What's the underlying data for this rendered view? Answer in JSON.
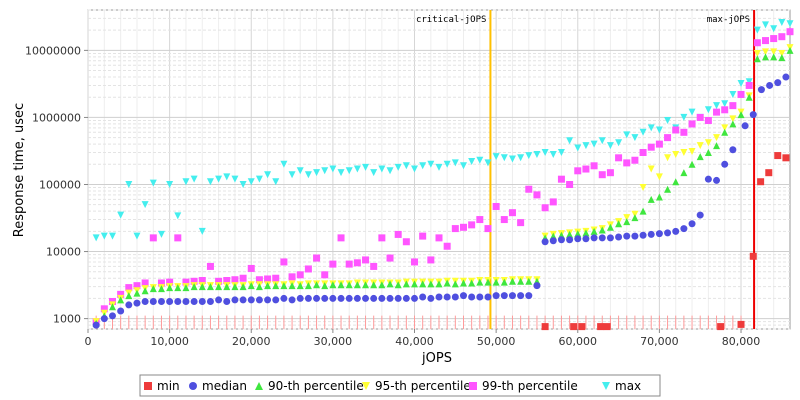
{
  "chart_data": {
    "type": "scatter",
    "xlabel": "jOPS",
    "ylabel": "Response time, usec",
    "xlim": [
      0,
      86000
    ],
    "ylim": [
      700,
      40000000
    ],
    "log_y": true,
    "grid": true,
    "legend_position": "bottom",
    "x_ticks": [
      0,
      10000,
      20000,
      30000,
      40000,
      50000,
      60000,
      70000,
      80000
    ],
    "x_tick_labels": [
      "0",
      "10,000",
      "20,000",
      "30,000",
      "40,000",
      "50,000",
      "60,000",
      "70,000",
      "80,000"
    ],
    "y_ticks": [
      1000,
      10000,
      100000,
      1000000,
      10000000
    ],
    "y_tick_labels": [
      "1000",
      "10000",
      "100000",
      "1000000",
      "10000000"
    ],
    "vlines": [
      {
        "label": "critical-jOPS",
        "x": 49300,
        "color": "#ffc000"
      },
      {
        "label": "max-jOPS",
        "x": 81600,
        "color": "#ee0000"
      }
    ],
    "series": [
      {
        "name": "min",
        "color": "#ee3b3b",
        "marker": "square",
        "x": [
          56000,
          59500,
          60500,
          62800,
          63600,
          77500,
          80000,
          81500,
          82400,
          83400,
          84500,
          85500
        ],
        "y": [
          760,
          760,
          760,
          760,
          760,
          760,
          820,
          8500,
          110000,
          150000,
          270000,
          250000
        ]
      },
      {
        "name": "median",
        "color": "#4f4fdf",
        "marker": "circle",
        "x": [
          1000,
          2000,
          3000,
          4000,
          5000,
          6000,
          7000,
          8000,
          9000,
          10000,
          11000,
          12000,
          13000,
          14000,
          15000,
          16000,
          17000,
          18000,
          19000,
          20000,
          21000,
          22000,
          23000,
          24000,
          25000,
          26000,
          27000,
          28000,
          29000,
          30000,
          31000,
          32000,
          33000,
          34000,
          35000,
          36000,
          37000,
          38000,
          39000,
          40000,
          41000,
          42000,
          43000,
          44000,
          45000,
          46000,
          47000,
          48000,
          49000,
          50000,
          51000,
          52000,
          53000,
          54000,
          55000,
          56000,
          57000,
          58000,
          59000,
          60000,
          61000,
          62000,
          63000,
          64000,
          65000,
          66000,
          67000,
          68000,
          69000,
          70000,
          71000,
          72000,
          73000,
          74000,
          75000,
          76000,
          77000,
          78000,
          79000,
          80500,
          81500,
          82500,
          83500,
          84500,
          85500
        ],
        "y": [
          800,
          1000,
          1100,
          1300,
          1600,
          1700,
          1800,
          1800,
          1800,
          1800,
          1800,
          1800,
          1800,
          1800,
          1800,
          1900,
          1800,
          1900,
          1900,
          1900,
          1900,
          1900,
          1900,
          2000,
          1900,
          2000,
          2000,
          2000,
          2000,
          2000,
          2000,
          2000,
          2000,
          2000,
          2000,
          2000,
          2000,
          2000,
          2000,
          2000,
          2100,
          2000,
          2100,
          2100,
          2100,
          2200,
          2100,
          2100,
          2100,
          2200,
          2200,
          2200,
          2200,
          2200,
          3100,
          14000,
          14500,
          15000,
          15000,
          15500,
          15500,
          16000,
          16000,
          16000,
          16500,
          17000,
          17000,
          17500,
          18000,
          18500,
          19000,
          20000,
          22000,
          26000,
          35000,
          120000,
          115000,
          200000,
          330000,
          750000,
          1100000,
          2600000,
          3000000,
          3300000,
          4000000
        ]
      },
      {
        "name": "90-th percentile",
        "color": "#3fe63f",
        "marker": "triangle-up",
        "x": [
          1000,
          2000,
          3000,
          4000,
          5000,
          6000,
          7000,
          8000,
          9000,
          10000,
          11000,
          12000,
          13000,
          14000,
          15000,
          16000,
          17000,
          18000,
          19000,
          20000,
          21000,
          22000,
          23000,
          24000,
          25000,
          26000,
          27000,
          28000,
          29000,
          30000,
          31000,
          32000,
          33000,
          34000,
          35000,
          36000,
          37000,
          38000,
          39000,
          40000,
          41000,
          42000,
          43000,
          44000,
          45000,
          46000,
          47000,
          48000,
          49000,
          50000,
          51000,
          52000,
          53000,
          54000,
          55000,
          56000,
          57000,
          58000,
          59000,
          60000,
          61000,
          62000,
          63000,
          64000,
          65000,
          66000,
          67000,
          68000,
          69000,
          70000,
          71000,
          72000,
          73000,
          74000,
          75000,
          76000,
          77000,
          78000,
          79000,
          80000,
          81000,
          82000,
          83000,
          84000,
          85000,
          86000
        ],
        "y": [
          850,
          1100,
          1500,
          1900,
          2200,
          2400,
          2600,
          2800,
          2800,
          2900,
          2900,
          2900,
          3000,
          3000,
          3000,
          3000,
          3000,
          3000,
          3000,
          3100,
          3000,
          3100,
          3100,
          3100,
          3100,
          3100,
          3100,
          3200,
          3100,
          3200,
          3200,
          3200,
          3200,
          3200,
          3200,
          3200,
          3300,
          3200,
          3300,
          3300,
          3300,
          3300,
          3300,
          3400,
          3300,
          3400,
          3400,
          3500,
          3500,
          3500,
          3500,
          3600,
          3600,
          3600,
          3600,
          16000,
          17000,
          17500,
          18000,
          18500,
          19000,
          20000,
          21000,
          23000,
          26000,
          28000,
          32000,
          40000,
          60000,
          65000,
          85000,
          110000,
          150000,
          200000,
          260000,
          300000,
          380000,
          600000,
          800000,
          1100000,
          2000000,
          7500000,
          8000000,
          8000000,
          7800000,
          10000000
        ]
      },
      {
        "name": "95-th percentile",
        "color": "#ffff33",
        "marker": "triangle-down",
        "x": [
          1000,
          2000,
          3000,
          4000,
          5000,
          6000,
          7000,
          8000,
          9000,
          10000,
          11000,
          12000,
          13000,
          14000,
          15000,
          16000,
          17000,
          18000,
          19000,
          20000,
          21000,
          22000,
          23000,
          24000,
          25000,
          26000,
          27000,
          28000,
          29000,
          30000,
          31000,
          32000,
          33000,
          34000,
          35000,
          36000,
          37000,
          38000,
          39000,
          40000,
          41000,
          42000,
          43000,
          44000,
          45000,
          46000,
          47000,
          48000,
          49000,
          50000,
          51000,
          52000,
          53000,
          54000,
          55000,
          56000,
          57000,
          58000,
          59000,
          60000,
          61000,
          62000,
          63000,
          64000,
          65000,
          66000,
          67000,
          68000,
          69000,
          70000,
          71000,
          72000,
          73000,
          74000,
          75000,
          76000,
          77000,
          78000,
          79000,
          80000,
          81000,
          82000,
          83000,
          84000,
          85000,
          86000
        ],
        "y": [
          900,
          1200,
          1600,
          2000,
          2400,
          2600,
          2800,
          2900,
          2900,
          3000,
          3000,
          3000,
          3100,
          3100,
          3100,
          3100,
          3100,
          3100,
          3100,
          3200,
          3200,
          3200,
          3200,
          3200,
          3300,
          3200,
          3300,
          3300,
          3300,
          3300,
          3300,
          3300,
          3400,
          3400,
          3400,
          3400,
          3400,
          3400,
          3500,
          3500,
          3500,
          3500,
          3500,
          3600,
          3600,
          3600,
          3600,
          3700,
          3700,
          3700,
          3700,
          3800,
          3800,
          3800,
          3800,
          17000,
          18000,
          18500,
          19000,
          19500,
          20000,
          21000,
          22000,
          25000,
          28000,
          32000,
          36000,
          90000,
          170000,
          130000,
          250000,
          280000,
          300000,
          310000,
          380000,
          420000,
          500000,
          700000,
          950000,
          1200000,
          2100000,
          9000000,
          9500000,
          9500000,
          9000000,
          11000000
        ]
      },
      {
        "name": "99-th percentile",
        "color": "#ff55ff",
        "marker": "square",
        "x": [
          1000,
          2000,
          3000,
          4000,
          5000,
          6000,
          7000,
          8000,
          9000,
          10000,
          11000,
          12000,
          13000,
          14000,
          15000,
          16000,
          17000,
          18000,
          19000,
          20000,
          21000,
          22000,
          23000,
          24000,
          25000,
          26000,
          27000,
          28000,
          29000,
          30000,
          31000,
          32000,
          33000,
          34000,
          35000,
          36000,
          37000,
          38000,
          39000,
          40000,
          41000,
          42000,
          43000,
          44000,
          45000,
          46000,
          47000,
          48000,
          49000,
          50000,
          51000,
          52000,
          53000,
          54000,
          55000,
          56000,
          57000,
          58000,
          59000,
          60000,
          61000,
          62000,
          63000,
          64000,
          65000,
          66000,
          67000,
          68000,
          69000,
          70000,
          71000,
          72000,
          73000,
          74000,
          75000,
          76000,
          77000,
          78000,
          79000,
          80000,
          81000,
          82000,
          83000,
          84000,
          85000,
          86000
        ],
        "y": [
          900,
          1400,
          1800,
          2300,
          2900,
          3100,
          3400,
          16000,
          3400,
          3500,
          16000,
          3500,
          3600,
          3700,
          6000,
          3600,
          3700,
          3800,
          4000,
          5600,
          3800,
          3900,
          4000,
          7000,
          4200,
          4500,
          5500,
          8000,
          4500,
          6500,
          16000,
          6500,
          6800,
          7500,
          6000,
          16000,
          8000,
          18000,
          14000,
          7000,
          17000,
          7500,
          16000,
          12000,
          22000,
          23000,
          25000,
          30000,
          22000,
          47000,
          30000,
          38000,
          27000,
          85000,
          70000,
          45000,
          55000,
          120000,
          100000,
          160000,
          170000,
          190000,
          140000,
          150000,
          250000,
          210000,
          230000,
          300000,
          360000,
          400000,
          500000,
          650000,
          600000,
          800000,
          1000000,
          900000,
          1200000,
          1300000,
          1500000,
          2200000,
          3000000,
          13000000,
          14000000,
          15000000,
          16000000,
          19000000
        ]
      },
      {
        "name": "max",
        "color": "#44eeee",
        "marker": "triangle-down",
        "x": [
          1000,
          2000,
          3000,
          4000,
          5000,
          6000,
          7000,
          8000,
          9000,
          10000,
          11000,
          12000,
          13000,
          14000,
          15000,
          16000,
          17000,
          18000,
          19000,
          20000,
          21000,
          22000,
          23000,
          24000,
          25000,
          26000,
          27000,
          28000,
          29000,
          30000,
          31000,
          32000,
          33000,
          34000,
          35000,
          36000,
          37000,
          38000,
          39000,
          40000,
          41000,
          42000,
          43000,
          44000,
          45000,
          46000,
          47000,
          48000,
          49000,
          50000,
          51000,
          52000,
          53000,
          54000,
          55000,
          56000,
          57000,
          58000,
          59000,
          60000,
          61000,
          62000,
          63000,
          64000,
          65000,
          66000,
          67000,
          68000,
          69000,
          70000,
          71000,
          72000,
          73000,
          74000,
          75000,
          76000,
          77000,
          78000,
          79000,
          80000,
          81000,
          82000,
          83000,
          84000,
          85000,
          86000
        ],
        "y": [
          16000,
          17000,
          17000,
          35000,
          100000,
          17000,
          50000,
          105000,
          18000,
          100000,
          34000,
          110000,
          120000,
          20000,
          110000,
          120000,
          130000,
          120000,
          100000,
          110000,
          120000,
          140000,
          110000,
          200000,
          140000,
          160000,
          140000,
          150000,
          160000,
          170000,
          150000,
          160000,
          170000,
          180000,
          150000,
          170000,
          160000,
          180000,
          190000,
          170000,
          190000,
          200000,
          180000,
          200000,
          210000,
          190000,
          220000,
          230000,
          210000,
          260000,
          250000,
          240000,
          250000,
          270000,
          280000,
          300000,
          280000,
          300000,
          450000,
          350000,
          380000,
          400000,
          450000,
          380000,
          420000,
          550000,
          500000,
          600000,
          700000,
          650000,
          900000,
          700000,
          1000000,
          1200000,
          1000000,
          1300000,
          1500000,
          1600000,
          2200000,
          3200000,
          3400000,
          20000000,
          24000000,
          21000000,
          26000000,
          25000000
        ]
      }
    ]
  }
}
